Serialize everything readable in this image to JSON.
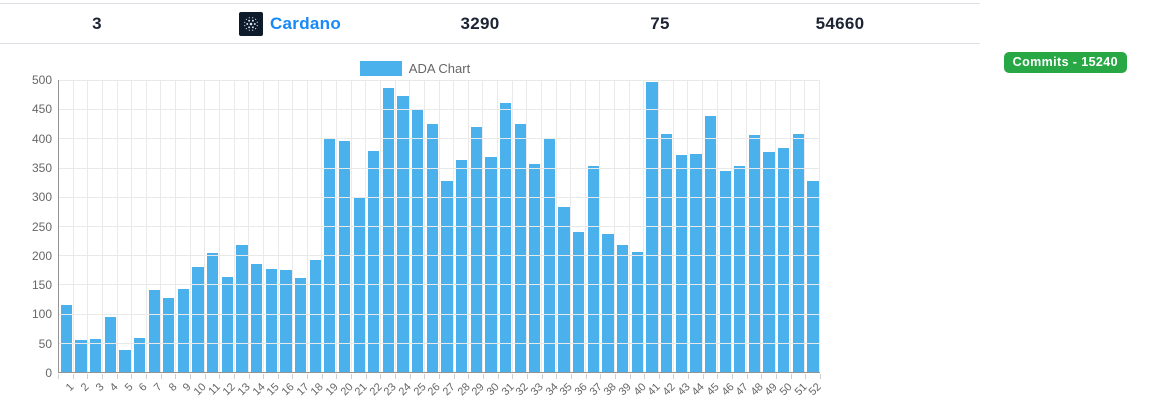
{
  "header": {
    "stats": [
      "3",
      "3290",
      "75",
      "54660"
    ],
    "coin": {
      "name": "Cardano",
      "logo_icon": "cardano-logo-icon"
    }
  },
  "badge": {
    "label": "Commits - 15240",
    "color": "#28a745"
  },
  "colors": {
    "bar_blue": "#4ab1ec",
    "coin_link_blue": "#1789fa",
    "badge_green": "#28a745",
    "logo_navy": "#0d1b2a",
    "axis_gray": "#949494",
    "grid_gray": "#e9e9e9",
    "label_gray": "#666666"
  },
  "chart_data": {
    "type": "bar",
    "title": "ADA Chart",
    "legend": "ADA Chart",
    "legend_position": "top",
    "bar_color": "#4ab1ec",
    "grid": true,
    "ylim": [
      0,
      500
    ],
    "ytick_step": 50,
    "ytick_labels": [
      0,
      50,
      100,
      150,
      200,
      250,
      300,
      350,
      400,
      450,
      500
    ],
    "xlabel": "",
    "ylabel": "",
    "categories": [
      "1",
      "2",
      "3",
      "4",
      "5",
      "6",
      "7",
      "8",
      "9",
      "10",
      "11",
      "12",
      "13",
      "14",
      "15",
      "16",
      "17",
      "18",
      "19",
      "20",
      "21",
      "22",
      "23",
      "24",
      "25",
      "26",
      "27",
      "28",
      "29",
      "30",
      "31",
      "32",
      "33",
      "34",
      "35",
      "36",
      "37",
      "38",
      "39",
      "40",
      "41",
      "42",
      "43",
      "44",
      "45",
      "46",
      "47",
      "48",
      "49",
      "50",
      "51",
      "52"
    ],
    "values": [
      115,
      55,
      57,
      94,
      38,
      59,
      140,
      127,
      143,
      180,
      204,
      163,
      217,
      185,
      177,
      175,
      161,
      192,
      400,
      396,
      298,
      379,
      487,
      473,
      450,
      424,
      327,
      363,
      419,
      368,
      461,
      424,
      357,
      400,
      282,
      240,
      353,
      237,
      217,
      206,
      496,
      408,
      372,
      373,
      438,
      345,
      352,
      405,
      377,
      384,
      408,
      327
    ]
  }
}
